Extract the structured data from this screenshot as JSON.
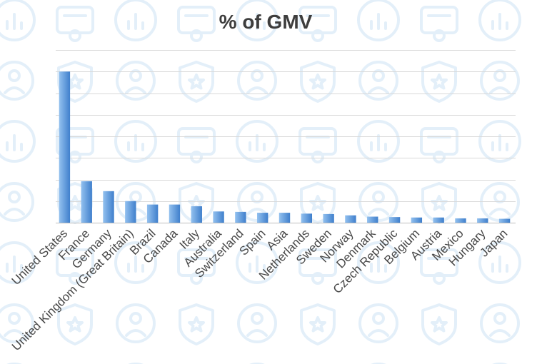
{
  "chart_data": {
    "type": "bar",
    "title": "% of GMV",
    "categories": [
      "United States",
      "France",
      "Germany",
      "United Kingdom (Great Britain)",
      "Brazil",
      "Canada",
      "Italy",
      "Australia",
      "Switzerland",
      "Spain",
      "Asia",
      "Netherlands",
      "Sweden",
      "Norway",
      "Denmark",
      "Czech Republic",
      "Belgium",
      "Austria",
      "Mexico",
      "Hungary",
      "Japan"
    ],
    "values": [
      35.0,
      9.6,
      7.3,
      5.0,
      4.2,
      4.2,
      3.8,
      2.6,
      2.5,
      2.3,
      2.3,
      2.1,
      2.0,
      1.7,
      1.4,
      1.3,
      1.2,
      1.2,
      1.0,
      1.0,
      0.9
    ],
    "ylim": [
      0,
      40
    ],
    "grid_step": 5,
    "grid": true,
    "colors": {
      "bar_light": "#93c1ef",
      "bar_dark": "#3f7fcc"
    }
  }
}
